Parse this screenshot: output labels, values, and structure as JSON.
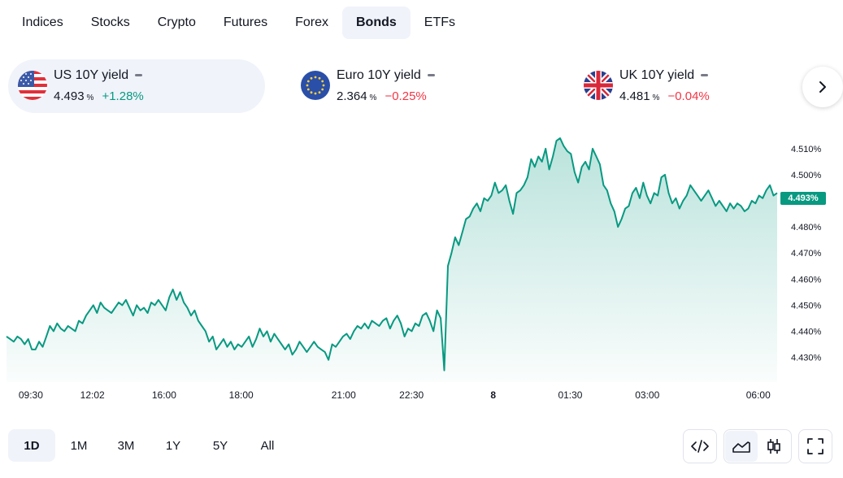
{
  "tabs": [
    {
      "label": "Indices",
      "active": false
    },
    {
      "label": "Stocks",
      "active": false
    },
    {
      "label": "Crypto",
      "active": false
    },
    {
      "label": "Futures",
      "active": false
    },
    {
      "label": "Forex",
      "active": false
    },
    {
      "label": "Bonds",
      "active": true
    },
    {
      "label": "ETFs",
      "active": false
    }
  ],
  "tickers": [
    {
      "name": "US 10Y yield",
      "value": "4.493",
      "unit": "%",
      "change": "+1.28%",
      "direction": "up",
      "flag_icon": "us-flag-icon",
      "selected": true
    },
    {
      "name": "Euro 10Y yield",
      "value": "2.364",
      "unit": "%",
      "change": "−0.25%",
      "direction": "down",
      "flag_icon": "eu-flag-icon",
      "selected": false
    },
    {
      "name": "UK 10Y yield",
      "value": "4.481",
      "unit": "%",
      "change": "−0.04%",
      "direction": "down",
      "flag_icon": "uk-flag-icon",
      "selected": false
    }
  ],
  "next_icon": "chevron-right-icon",
  "chart_data": {
    "type": "area",
    "series": [
      {
        "values": [
          4.438,
          4.437,
          4.436,
          4.438,
          4.437,
          4.435,
          4.437,
          4.433,
          4.433,
          4.436,
          4.434,
          4.438,
          4.442,
          4.44,
          4.443,
          4.441,
          4.44,
          4.442,
          4.441,
          4.44,
          4.444,
          4.443,
          4.446,
          4.448,
          4.45,
          4.447,
          4.451,
          4.449,
          4.448,
          4.447,
          4.449,
          4.451,
          4.45,
          4.452,
          4.449,
          4.446,
          4.45,
          4.448,
          4.449,
          4.447,
          4.451,
          4.45,
          4.452,
          4.45,
          4.448,
          4.453,
          4.456,
          4.452,
          4.455,
          4.451,
          4.449,
          4.446,
          4.448,
          4.444,
          4.442,
          4.44,
          4.436,
          4.438,
          4.433,
          4.435,
          4.437,
          4.434,
          4.436,
          4.433,
          4.435,
          4.434,
          4.436,
          4.438,
          4.434,
          4.437,
          4.441,
          4.438,
          4.44,
          4.436,
          4.439,
          4.437,
          4.435,
          4.433,
          4.435,
          4.431,
          4.433,
          4.436,
          4.434,
          4.432,
          4.434,
          4.436,
          4.434,
          4.433,
          4.432,
          4.429,
          4.435,
          4.434,
          4.436,
          4.438,
          4.439,
          4.437,
          4.44,
          4.442,
          4.441,
          4.443,
          4.441,
          4.444,
          4.443,
          4.442,
          4.444,
          4.445,
          4.441,
          4.444,
          4.446,
          4.443,
          4.438,
          4.441,
          4.44,
          4.443,
          4.442,
          4.446,
          4.447,
          4.444,
          4.44,
          4.448,
          4.445,
          4.425,
          4.465,
          4.47,
          4.476,
          4.473,
          4.478,
          4.483,
          4.484,
          4.487,
          4.489,
          4.486,
          4.491,
          4.49,
          4.492,
          4.497,
          4.493,
          4.494,
          4.496,
          4.49,
          4.485,
          4.493,
          4.494,
          4.496,
          4.499,
          4.506,
          4.503,
          4.507,
          4.505,
          4.51,
          4.502,
          4.507,
          4.513,
          4.514,
          4.511,
          4.509,
          4.508,
          4.501,
          4.497,
          4.503,
          4.505,
          4.502,
          4.51,
          4.507,
          4.504,
          4.496,
          4.494,
          4.489,
          4.486,
          4.48,
          4.483,
          4.487,
          4.488,
          4.493,
          4.495,
          4.491,
          4.497,
          4.492,
          4.489,
          4.493,
          4.492,
          4.499,
          4.5,
          4.493,
          4.489,
          4.491,
          4.487,
          4.49,
          4.492,
          4.496,
          4.494,
          4.492,
          4.49,
          4.492,
          4.494,
          4.491,
          4.488,
          4.49,
          4.488,
          4.486,
          4.489,
          4.487,
          4.489,
          4.488,
          4.486,
          4.487,
          4.49,
          4.489,
          4.492,
          4.491,
          4.494,
          4.496,
          4.492,
          4.493
        ]
      }
    ],
    "x_tick_labels": [
      {
        "label": "09:30",
        "bold": false
      },
      {
        "label": "12:02",
        "bold": false
      },
      {
        "label": "16:00",
        "bold": false
      },
      {
        "label": "18:00",
        "bold": false
      },
      {
        "label": "21:00",
        "bold": false
      },
      {
        "label": "22:30",
        "bold": false
      },
      {
        "label": "8",
        "bold": true
      },
      {
        "label": "01:30",
        "bold": false
      },
      {
        "label": "03:00",
        "bold": false
      },
      {
        "label": "06:00",
        "bold": false
      }
    ],
    "y_tick_labels": [
      "4.510%",
      "4.500%",
      "4.490%",
      "4.480%",
      "4.470%",
      "4.460%",
      "4.450%",
      "4.440%",
      "4.430%"
    ],
    "y_ticks": [
      4.51,
      4.5,
      4.49,
      4.48,
      4.47,
      4.46,
      4.45,
      4.44,
      4.43
    ],
    "ylim": [
      4.4205,
      4.5165
    ],
    "last_price_label": "4.493%",
    "line_color": "#089981",
    "grid": false
  },
  "ranges": [
    {
      "label": "1D",
      "active": true
    },
    {
      "label": "1M",
      "active": false
    },
    {
      "label": "3M",
      "active": false
    },
    {
      "label": "1Y",
      "active": false
    },
    {
      "label": "5Y",
      "active": false
    },
    {
      "label": "All",
      "active": false
    }
  ],
  "tools": {
    "embed_icon": "embed-code-icon",
    "area_icon": "area-chart-icon",
    "candles_icon": "candlestick-icon",
    "fullscreen_icon": "fullscreen-icon"
  }
}
